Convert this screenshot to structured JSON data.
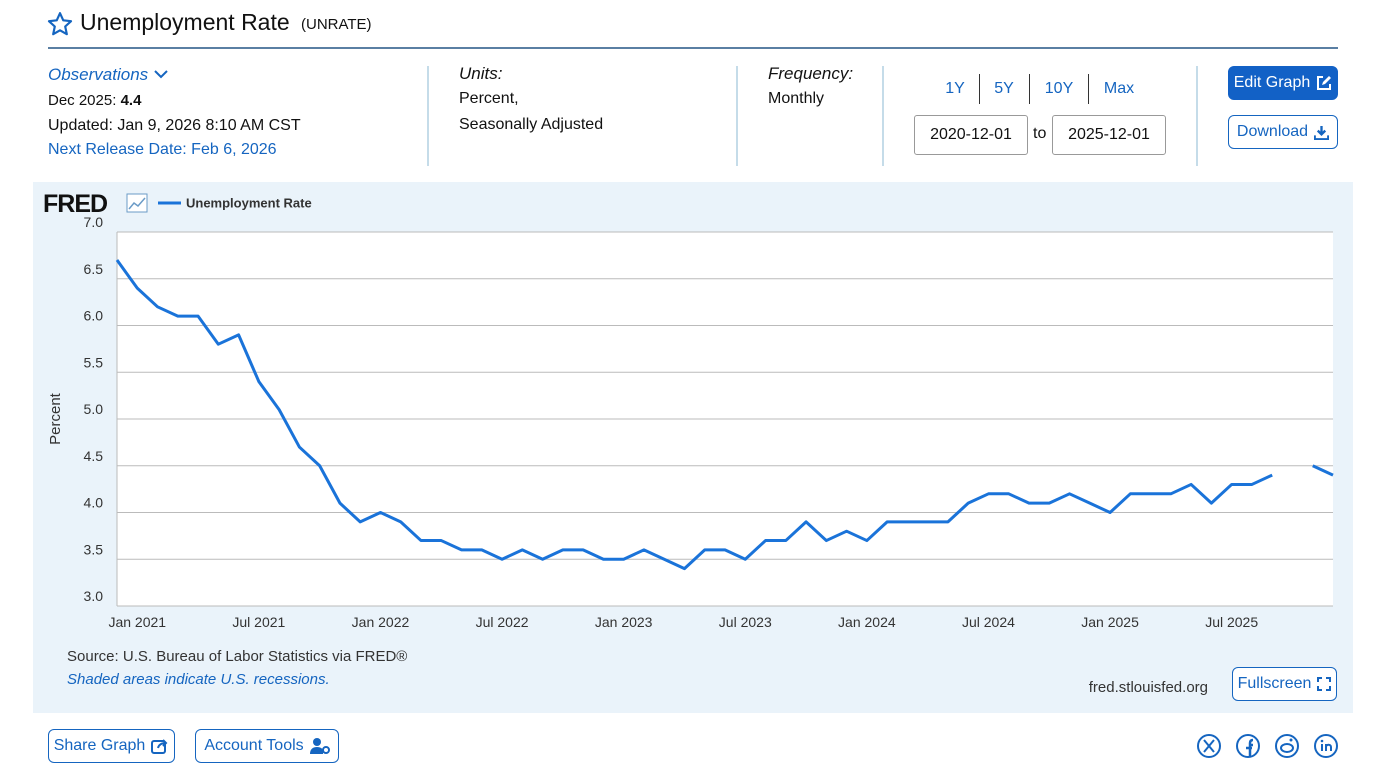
{
  "header": {
    "title": "Unemployment Rate",
    "series_id": "(UNRATE)"
  },
  "observations": {
    "label": "Observations",
    "latest_date": "Dec 2025:",
    "latest_value": 4.4,
    "updated": "Updated: Jan 9, 2026 8:10 AM CST",
    "next_release": "Next Release Date: Feb 6, 2026"
  },
  "units": {
    "label": "Units:",
    "lines": [
      "Percent,",
      "Seasonally Adjusted"
    ]
  },
  "frequency": {
    "label": "Frequency:",
    "value": "Monthly"
  },
  "ranges": [
    "1Y",
    "5Y",
    "10Y",
    "Max"
  ],
  "date_range": {
    "start": "2020-12-01",
    "separator": "to",
    "end": "2025-12-01"
  },
  "buttons": {
    "edit": "Edit Graph",
    "download": "Download",
    "fullscreen": "Fullscreen",
    "share": "Share Graph",
    "account": "Account Tools"
  },
  "chart_data": {
    "type": "line",
    "logo": "FRED",
    "ylabel": "Percent",
    "source": "Source: U.S. Bureau of Labor Statistics via FRED®",
    "note": "Shaded areas indicate U.S. recessions.",
    "site": "fred.stlouisfed.org",
    "legend": "top-left",
    "grid": true,
    "categories": [
      null,
      "Jan 2021",
      null,
      null,
      null,
      null,
      null,
      "Jul 2021",
      null,
      null,
      null,
      null,
      null,
      "Jan 2022",
      null,
      null,
      null,
      null,
      null,
      "Jul 2022",
      null,
      null,
      null,
      null,
      null,
      "Jan 2023",
      null,
      null,
      null,
      null,
      null,
      "Jul 2023",
      null,
      null,
      null,
      null,
      null,
      "Jan 2024",
      null,
      null,
      null,
      null,
      null,
      "Jul 2024",
      null,
      null,
      null,
      null,
      null,
      "Jan 2025",
      null,
      null,
      null,
      null,
      null,
      "Jul 2025",
      null,
      null,
      null,
      null,
      null
    ],
    "series": [
      {
        "name": "Unemployment Rate",
        "color": "#1a73d9",
        "values": [
          6.7,
          6.4,
          6.2,
          6.1,
          6.1,
          5.8,
          5.9,
          5.4,
          5.1,
          4.7,
          4.5,
          4.1,
          3.9,
          4.0,
          3.9,
          3.7,
          3.7,
          3.6,
          3.6,
          3.5,
          3.6,
          3.5,
          3.6,
          3.6,
          3.5,
          3.5,
          3.6,
          3.5,
          3.4,
          3.6,
          3.6,
          3.5,
          3.7,
          3.7,
          3.9,
          3.7,
          3.8,
          3.7,
          3.9,
          3.9,
          3.9,
          3.9,
          4.1,
          4.2,
          4.2,
          4.1,
          4.1,
          4.2,
          4.1,
          4.0,
          4.2,
          4.2,
          4.2,
          4.3,
          4.1,
          4.3,
          4.3,
          4.4,
          null,
          4.5,
          4.4
        ]
      }
    ],
    "ylim": [
      3,
      7
    ],
    "yticks": [
      {
        "value": 3,
        "label": "3.0"
      },
      {
        "value": 3.5,
        "label": "3.5"
      },
      {
        "value": 4,
        "label": "4.0"
      },
      {
        "value": 4.5,
        "label": "4.5"
      },
      {
        "value": 5,
        "label": "5.0"
      },
      {
        "value": 5.5,
        "label": "5.5"
      },
      {
        "value": 6,
        "label": "6.0"
      },
      {
        "value": 6.5,
        "label": "6.5"
      },
      {
        "value": 7,
        "label": "7.0"
      }
    ]
  }
}
